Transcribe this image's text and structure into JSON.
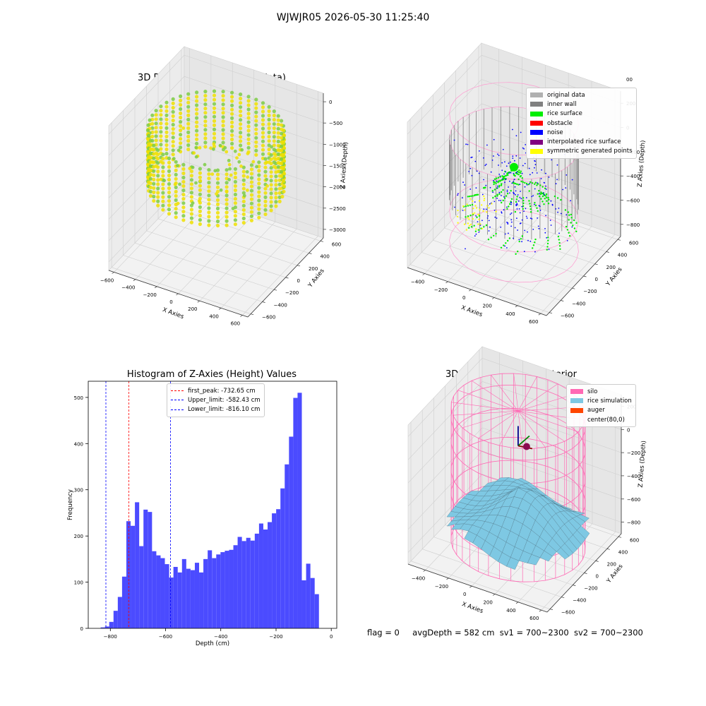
{
  "figure": {
    "suptitle": "WJWJR05 2026-05-30 11:25:40",
    "status": {
      "flag_text": "flag = 0",
      "avg_text": "avgDepth = 582 cm",
      "sv1_text": "sv1 = 700~2300",
      "sv2_text": "sv2 = 700~2300"
    }
  },
  "colors": {
    "original_data": "#b0b0b0",
    "inner_wall": "#808080",
    "rice_surface": "#00ee00",
    "obstacle": "#ff0000",
    "noise": "#0000ff",
    "interpolated_rice_surface": "#800080",
    "symmetric_generated_points": "#ffff00",
    "histogram_bars": "#4b4bff",
    "first_peak_line": "#ff0000",
    "limit_lines": "#0000ff",
    "silo": "#ff69b4",
    "rice_simulation": "#7ec8e3",
    "auger": "#ff4500",
    "raw_point_a": "#f0e000",
    "raw_point_b": "#7ccc44"
  },
  "chart_data": [
    {
      "type": "scatter",
      "projection": "3d",
      "title": "3D Plot of Silo Interior(row data)",
      "xlabel": "X Axies",
      "ylabel": "Y Axies",
      "zlabel": "Z Axies (Depth)",
      "x_ticks": [
        "−600",
        "−400",
        "−200",
        "0",
        "200",
        "400",
        "600"
      ],
      "y_ticks": [
        "−600",
        "−400",
        "−200",
        "0",
        "200",
        "400",
        "600"
      ],
      "z_ticks": [
        "0",
        "−500",
        "−1000",
        "−1500",
        "−2000",
        "−2500",
        "−3000"
      ],
      "xlim": [
        -650,
        650
      ],
      "ylim": [
        -650,
        650
      ],
      "zlim": [
        -3200,
        200
      ],
      "grid": true,
      "description_hidden": "ring of raw depth points between about -200 and -1800"
    },
    {
      "type": "scatter",
      "projection": "3d",
      "title": "3D classify of Silo Interior",
      "xlabel": "X Axies",
      "ylabel": "Y Axies",
      "zlabel": "Z Axies (Depth)",
      "x_ticks": [
        "−400",
        "−200",
        "0",
        "200",
        "400",
        "600"
      ],
      "y_ticks": [
        "−600",
        "−400",
        "−200",
        "0",
        "200",
        "400",
        "600"
      ],
      "z_ticks": [
        "200",
        "0",
        "−200",
        "−400",
        "−600",
        "−800"
      ],
      "z_ticks_extra": "00",
      "xlim": [
        -550,
        650
      ],
      "ylim": [
        -650,
        650
      ],
      "zlim": [
        -900,
        300
      ],
      "grid": true,
      "legend": [
        {
          "label": "original data",
          "color_key": "original_data"
        },
        {
          "label": "inner wall",
          "color_key": "inner_wall"
        },
        {
          "label": "rice surface",
          "color_key": "rice_surface"
        },
        {
          "label": "obstacle",
          "color_key": "obstacle"
        },
        {
          "label": "noise",
          "color_key": "noise"
        },
        {
          "label": "interpolated rice surface",
          "color_key": "interpolated_rice_surface"
        },
        {
          "label": "symmetric generated points",
          "color_key": "symmetric_generated_points"
        }
      ],
      "legend_position": "upper-right"
    },
    {
      "type": "bar",
      "title": "Histogram of Z-Axies (Height) Values",
      "xlabel": "Depth (cm)",
      "ylabel": "Frequency",
      "xlim": [
        -880,
        20
      ],
      "ylim": [
        0,
        535
      ],
      "x_ticks": [
        -800,
        -600,
        -400,
        -200,
        0
      ],
      "x_tick_labels": [
        "−800",
        "−600",
        "−400",
        "−200",
        "0"
      ],
      "y_ticks": [
        0,
        100,
        200,
        300,
        400,
        500
      ],
      "bin_start": -835,
      "bin_width": 15.5,
      "values": [
        2,
        4,
        14,
        38,
        68,
        112,
        232,
        222,
        273,
        178,
        257,
        252,
        167,
        158,
        152,
        139,
        110,
        133,
        121,
        150,
        129,
        126,
        142,
        121,
        150,
        169,
        152,
        160,
        165,
        168,
        170,
        180,
        198,
        189,
        196,
        190,
        205,
        227,
        214,
        230,
        249,
        258,
        303,
        355,
        415,
        499,
        510,
        104,
        140,
        109,
        74
      ],
      "vlines": [
        {
          "label": "first_peak: -732.65 cm",
          "x": -732.65,
          "color_key": "first_peak_line"
        },
        {
          "label": "Upper_limit: -582.43 cm",
          "x": -582.43,
          "color_key": "limit_lines"
        },
        {
          "label": "Lower_limit: -816.10 cm",
          "x": -816.1,
          "color_key": "limit_lines"
        }
      ],
      "legend_position": "top-center",
      "grid": false
    },
    {
      "type": "area",
      "projection": "3d",
      "title": "3D simulation of Silo Interior",
      "xlabel": "X Axies",
      "ylabel": "Y Axies",
      "zlabel": "Z Axies (Depth)",
      "x_ticks": [
        "−400",
        "−200",
        "0",
        "200",
        "400",
        "600"
      ],
      "y_ticks": [
        "−600",
        "−400",
        "−200",
        "0",
        "200",
        "400",
        "600"
      ],
      "z_ticks": [
        "200",
        "0",
        "−200",
        "−400",
        "−600",
        "−800"
      ],
      "xlim": [
        -550,
        650
      ],
      "ylim": [
        -650,
        650
      ],
      "zlim": [
        -900,
        300
      ],
      "grid": true,
      "legend": [
        {
          "label": "silo",
          "color_key": "silo"
        },
        {
          "label": "rice simulation",
          "color_key": "rice_simulation"
        },
        {
          "label": "auger",
          "color_key": "auger"
        },
        {
          "label": "center(80,0)",
          "color_key": ""
        }
      ],
      "legend_position": "upper-right"
    }
  ]
}
